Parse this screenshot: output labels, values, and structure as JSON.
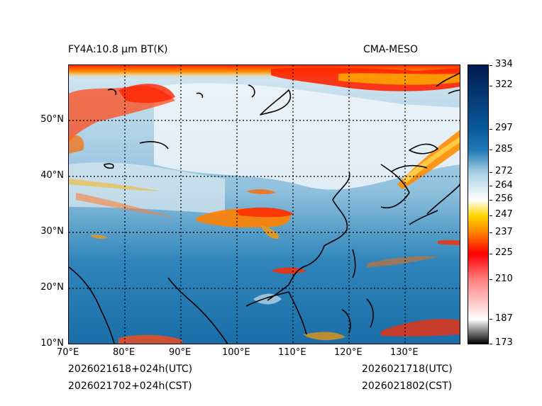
{
  "header": {
    "title_left": "FY4A:10.8 µm BT(K)",
    "title_right": "CMA-MESO"
  },
  "footer": {
    "utc_init": "2026021618+024h(UTC)",
    "cst_init": "2026021702+024h(CST)",
    "utc_valid": "2026021718(UTC)",
    "cst_valid": "2026021802(CST)"
  },
  "map": {
    "lon_labels": [
      "70°E",
      "80°E",
      "90°E",
      "100°E",
      "110°E",
      "120°E",
      "130°E"
    ],
    "lat_labels": [
      "50°N",
      "40°N",
      "30°N",
      "20°N",
      "10°N"
    ]
  },
  "colorbar": {
    "unit": "K",
    "ticks": [
      "334",
      "322",
      "297",
      "285",
      "272",
      "264",
      "256",
      "247",
      "237",
      "225",
      "210",
      "187",
      "173"
    ],
    "range": [
      173,
      334
    ],
    "stops": [
      {
        "value": 173,
        "color": "#000000"
      },
      {
        "value": 187,
        "color": "#ffffff"
      },
      {
        "value": 210,
        "color": "#ff7f7f"
      },
      {
        "value": 225,
        "color": "#ff0000"
      },
      {
        "value": 237,
        "color": "#ff7f00"
      },
      {
        "value": 247,
        "color": "#ffd700"
      },
      {
        "value": 256,
        "color": "#ffffff"
      },
      {
        "value": 272,
        "color": "#a8cfe6"
      },
      {
        "value": 285,
        "color": "#1f78b4"
      },
      {
        "value": 297,
        "color": "#0a5a9c"
      },
      {
        "value": 334,
        "color": "#001a4d"
      }
    ]
  }
}
